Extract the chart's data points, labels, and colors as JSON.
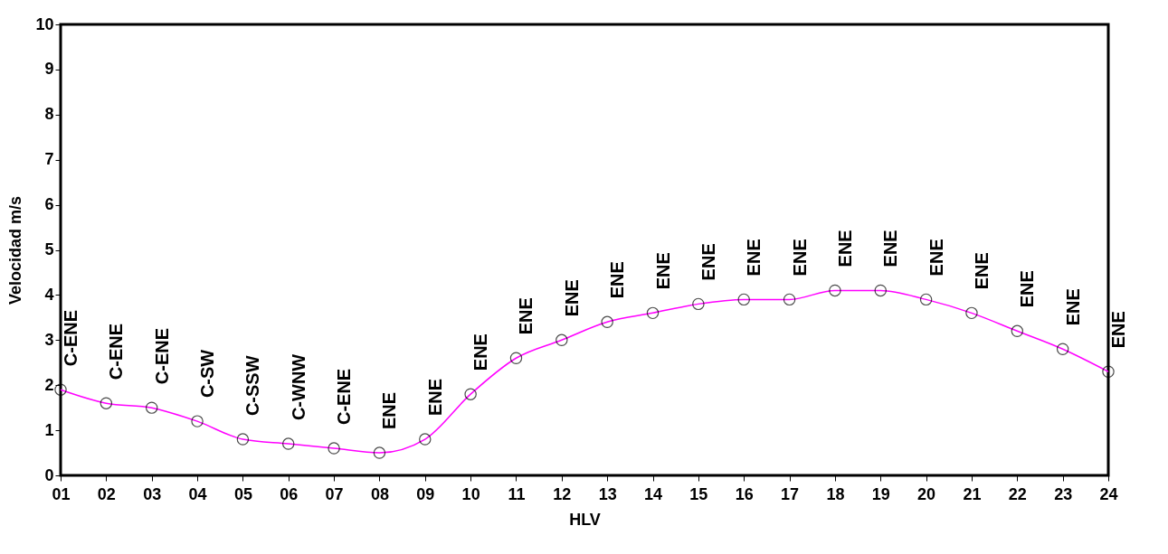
{
  "chart_data": {
    "type": "line",
    "xlabel": "HLV",
    "ylabel": "Velocidad m/s",
    "categories": [
      "01",
      "02",
      "03",
      "04",
      "05",
      "06",
      "07",
      "08",
      "09",
      "10",
      "11",
      "12",
      "13",
      "14",
      "15",
      "16",
      "17",
      "18",
      "19",
      "20",
      "21",
      "22",
      "23",
      "24"
    ],
    "series": [
      {
        "color": "#ff00ff",
        "values": [
          1.9,
          1.6,
          1.5,
          1.2,
          0.8,
          0.7,
          0.6,
          0.5,
          0.8,
          1.8,
          2.6,
          3.0,
          3.4,
          3.6,
          3.8,
          3.9,
          3.9,
          4.1,
          4.1,
          3.9,
          3.6,
          3.2,
          2.8,
          2.3
        ]
      }
    ],
    "marker": "circle",
    "line_style": "solid",
    "ylim": [
      0,
      10
    ],
    "yticks": [
      0,
      1,
      2,
      3,
      4,
      5,
      6,
      7,
      8,
      9,
      10
    ],
    "annotations": [
      {
        "text": "C-ENE",
        "x": "01",
        "y": 1.9
      },
      {
        "text": "C-ENE",
        "x": "02",
        "y": 1.6
      },
      {
        "text": "C-ENE",
        "x": "03",
        "y": 1.5
      },
      {
        "text": "C-SW",
        "x": "04",
        "y": 1.2
      },
      {
        "text": "C-SSW",
        "x": "05",
        "y": 0.8
      },
      {
        "text": "C-WNW",
        "x": "06",
        "y": 0.7
      },
      {
        "text": "C-ENE",
        "x": "07",
        "y": 0.6
      },
      {
        "text": "ENE",
        "x": "08",
        "y": 0.5
      },
      {
        "text": "ENE",
        "x": "09",
        "y": 0.8
      },
      {
        "text": "ENE",
        "x": "10",
        "y": 1.8
      },
      {
        "text": "ENE",
        "x": "11",
        "y": 2.6
      },
      {
        "text": "ENE",
        "x": "12",
        "y": 3.0
      },
      {
        "text": "ENE",
        "x": "13",
        "y": 3.4
      },
      {
        "text": "ENE",
        "x": "14",
        "y": 3.6
      },
      {
        "text": "ENE",
        "x": "15",
        "y": 3.8
      },
      {
        "text": "ENE",
        "x": "16",
        "y": 3.9
      },
      {
        "text": "ENE",
        "x": "17",
        "y": 3.9
      },
      {
        "text": "ENE",
        "x": "18",
        "y": 4.1
      },
      {
        "text": "ENE",
        "x": "19",
        "y": 4.1
      },
      {
        "text": "ENE",
        "x": "20",
        "y": 3.9
      },
      {
        "text": "ENE",
        "x": "21",
        "y": 3.6
      },
      {
        "text": "ENE",
        "x": "22",
        "y": 3.2
      },
      {
        "text": "ENE",
        "x": "23",
        "y": 2.8
      },
      {
        "text": "ENE",
        "x": "24",
        "y": 2.3
      }
    ]
  }
}
